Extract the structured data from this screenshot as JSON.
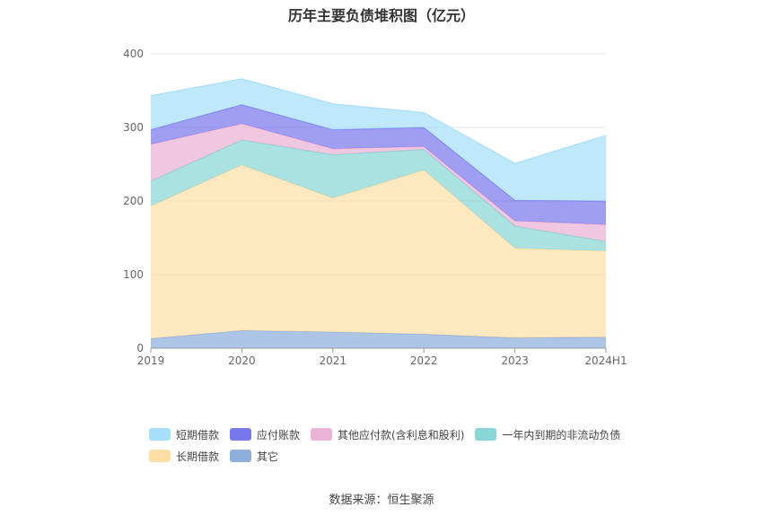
{
  "chart_data": {
    "type": "area",
    "stacked": true,
    "title": "历年主要负债堆积图（亿元）",
    "categories": [
      "2019",
      "2020",
      "2021",
      "2022",
      "2023",
      "2024H1"
    ],
    "ylim": [
      0,
      400
    ],
    "yticks": [
      0,
      100,
      200,
      300,
      400
    ],
    "grid": true,
    "legend_position": "bottom",
    "series": [
      {
        "name": "其它",
        "color": "#8eaedb",
        "values": [
          13,
          24,
          22,
          19,
          14,
          15
        ]
      },
      {
        "name": "长期借款",
        "color": "#fddfa6",
        "values": [
          180,
          225,
          182,
          223,
          122,
          117
        ]
      },
      {
        "name": "一年内到期的非流动负债",
        "color": "#89d6d6",
        "values": [
          34,
          34,
          59,
          28,
          30,
          13
        ]
      },
      {
        "name": "其他应付款(含利息和股利)",
        "color": "#e9b2d6",
        "values": [
          50,
          22,
          8,
          4,
          7,
          23
        ]
      },
      {
        "name": "应付账款",
        "color": "#7a78ee",
        "values": [
          20,
          26,
          26,
          26,
          28,
          32
        ]
      },
      {
        "name": "短期借款",
        "color": "#a6dffa",
        "values": [
          46,
          35,
          35,
          20,
          50,
          89
        ]
      }
    ]
  },
  "source": "数据来源：恒生聚源"
}
